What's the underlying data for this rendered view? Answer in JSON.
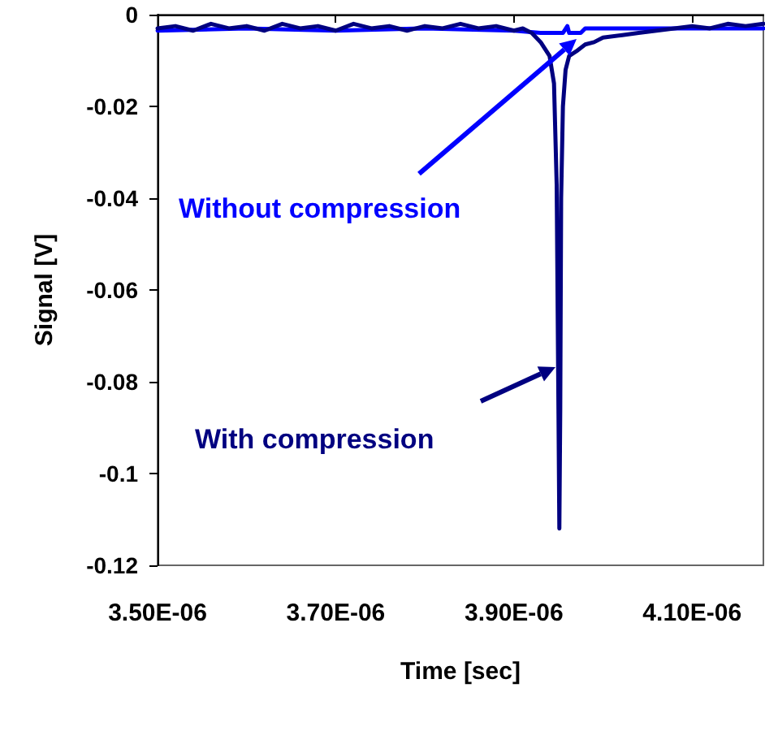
{
  "chart_data": {
    "type": "line",
    "xlabel": "Time [sec]",
    "ylabel": "Signal [V]",
    "xlim": [
      3.5e-06,
      4.18e-06
    ],
    "xticks": [
      {
        "value": 3.5e-06,
        "label": "3.50E-06"
      },
      {
        "value": 3.7e-06,
        "label": "3.70E-06"
      },
      {
        "value": 3.9e-06,
        "label": "3.90E-06"
      },
      {
        "value": 4.1e-06,
        "label": "4.10E-06"
      }
    ],
    "ylim": [
      -0.12,
      0
    ],
    "yticks": [
      0,
      -0.02,
      -0.04,
      -0.06,
      -0.08,
      -0.1,
      -0.12
    ],
    "grid": false,
    "legend": false,
    "marker": "none",
    "line_style": "solid",
    "series": [
      {
        "name": "Without compression",
        "color": "#0000ff",
        "x": [
          3.5e-06,
          3.6e-06,
          3.7e-06,
          3.8e-06,
          3.9e-06,
          3.93e-06,
          3.955e-06,
          3.96e-06,
          3.962e-06,
          3.975e-06,
          3.98e-06,
          4.08e-06,
          4.18e-06
        ],
        "values": [
          -0.0035,
          -0.003,
          -0.0035,
          -0.003,
          -0.0035,
          -0.004,
          -0.004,
          -0.0025,
          -0.004,
          -0.004,
          -0.003,
          -0.003,
          -0.003
        ]
      },
      {
        "name": "With compression",
        "color": "#000080",
        "x": [
          3.5e-06,
          3.52e-06,
          3.54e-06,
          3.56e-06,
          3.58e-06,
          3.6e-06,
          3.62e-06,
          3.64e-06,
          3.66e-06,
          3.68e-06,
          3.7e-06,
          3.72e-06,
          3.74e-06,
          3.76e-06,
          3.78e-06,
          3.8e-06,
          3.82e-06,
          3.84e-06,
          3.86e-06,
          3.88e-06,
          3.9e-06,
          3.91e-06,
          3.92e-06,
          3.93e-06,
          3.94e-06,
          3.945e-06,
          3.948e-06,
          3.95e-06,
          3.951e-06,
          3.952e-06,
          3.953e-06,
          3.955e-06,
          3.958e-06,
          3.962e-06,
          3.97e-06,
          3.98e-06,
          3.99e-06,
          4e-06,
          4.02e-06,
          4.04e-06,
          4.06e-06,
          4.08e-06,
          4.1e-06,
          4.12e-06,
          4.14e-06,
          4.16e-06,
          4.18e-06
        ],
        "values": [
          -0.003,
          -0.0025,
          -0.0035,
          -0.002,
          -0.003,
          -0.0025,
          -0.0035,
          -0.002,
          -0.003,
          -0.0025,
          -0.0035,
          -0.002,
          -0.003,
          -0.0025,
          -0.0035,
          -0.0025,
          -0.003,
          -0.002,
          -0.003,
          -0.0025,
          -0.0035,
          -0.003,
          -0.004,
          -0.006,
          -0.009,
          -0.015,
          -0.037,
          -0.086,
          -0.112,
          -0.086,
          -0.04,
          -0.02,
          -0.012,
          -0.009,
          -0.008,
          -0.0065,
          -0.006,
          -0.005,
          -0.0045,
          -0.004,
          -0.0035,
          -0.003,
          -0.0025,
          -0.003,
          -0.002,
          -0.0025,
          -0.002
        ]
      }
    ]
  }
}
